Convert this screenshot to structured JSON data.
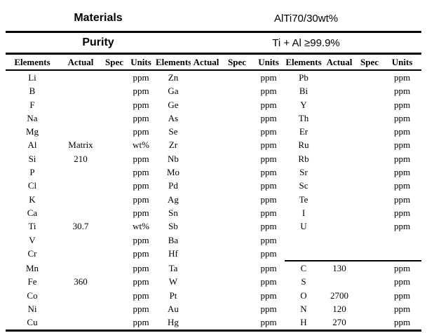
{
  "banner": {
    "materials_label": "Materials",
    "materials_value": "AlTi70/30wt%",
    "purity_label": "Purity",
    "purity_value": "Ti + Al ≥99.9%"
  },
  "column_headers": [
    "Elements",
    "Actual",
    "Spec",
    "Units"
  ],
  "groups": [
    {
      "rows": [
        [
          "Li",
          "",
          "",
          "ppm"
        ],
        [
          "B",
          "",
          "",
          "ppm"
        ],
        [
          "F",
          "",
          "",
          "ppm"
        ],
        [
          "Na",
          "",
          "",
          "ppm"
        ],
        [
          "Mg",
          "",
          "",
          "ppm"
        ],
        [
          "Al",
          "Matrix",
          "",
          "wt%"
        ],
        [
          "Si",
          "210",
          "",
          "ppm"
        ],
        [
          "P",
          "",
          "",
          "ppm"
        ],
        [
          "Cl",
          "",
          "",
          "ppm"
        ],
        [
          "K",
          "",
          "",
          "ppm"
        ],
        [
          "Ca",
          "",
          "",
          "ppm"
        ],
        [
          "Ti",
          "30.7",
          "",
          "wt%"
        ],
        [
          "V",
          "",
          "",
          "ppm"
        ],
        [
          "Cr",
          "",
          "",
          "ppm"
        ],
        [
          "Mn",
          "",
          "",
          "ppm"
        ],
        [
          "Fe",
          "360",
          "",
          "ppm"
        ],
        [
          "Co",
          "",
          "",
          "ppm"
        ],
        [
          "Ni",
          "",
          "",
          "ppm"
        ],
        [
          "Cu",
          "",
          "",
          "ppm"
        ]
      ]
    },
    {
      "rows": [
        [
          "Zn",
          "",
          "",
          "ppm"
        ],
        [
          "Ga",
          "",
          "",
          "ppm"
        ],
        [
          "Ge",
          "",
          "",
          "ppm"
        ],
        [
          "As",
          "",
          "",
          "ppm"
        ],
        [
          "Se",
          "",
          "",
          "ppm"
        ],
        [
          "Zr",
          "",
          "",
          "ppm"
        ],
        [
          "Nb",
          "",
          "",
          "ppm"
        ],
        [
          "Mo",
          "",
          "",
          "ppm"
        ],
        [
          "Pd",
          "",
          "",
          "ppm"
        ],
        [
          "Ag",
          "",
          "",
          "ppm"
        ],
        [
          "Sn",
          "",
          "",
          "ppm"
        ],
        [
          "Sb",
          "",
          "",
          "ppm"
        ],
        [
          "Ba",
          "",
          "",
          "ppm"
        ],
        [
          "Hf",
          "",
          "",
          "ppm"
        ],
        [
          "Ta",
          "",
          "",
          "ppm"
        ],
        [
          "W",
          "",
          "",
          "ppm"
        ],
        [
          "Pt",
          "",
          "",
          "ppm"
        ],
        [
          "Au",
          "",
          "",
          "ppm"
        ],
        [
          "Hg",
          "",
          "",
          "ppm"
        ]
      ]
    },
    {
      "separator_before_row": 14,
      "rows": [
        [
          "Pb",
          "",
          "",
          "ppm"
        ],
        [
          "Bi",
          "",
          "",
          "ppm"
        ],
        [
          "Y",
          "",
          "",
          "ppm"
        ],
        [
          "Th",
          "",
          "",
          "ppm"
        ],
        [
          "Er",
          "",
          "",
          "ppm"
        ],
        [
          "Ru",
          "",
          "",
          "ppm"
        ],
        [
          "Rb",
          "",
          "",
          "ppm"
        ],
        [
          "Sr",
          "",
          "",
          "ppm"
        ],
        [
          "Sc",
          "",
          "",
          "ppm"
        ],
        [
          "Te",
          "",
          "",
          "ppm"
        ],
        [
          "I",
          "",
          "",
          "ppm"
        ],
        [
          "U",
          "",
          "",
          "ppm"
        ],
        [
          "",
          "",
          "",
          ""
        ],
        [
          "",
          "",
          "",
          ""
        ],
        [
          "C",
          "130",
          "",
          "ppm"
        ],
        [
          "S",
          "",
          "",
          "ppm"
        ],
        [
          "O",
          "2700",
          "",
          "ppm"
        ],
        [
          "N",
          "120",
          "",
          "ppm"
        ],
        [
          "H",
          "270",
          "",
          "ppm"
        ]
      ]
    }
  ]
}
